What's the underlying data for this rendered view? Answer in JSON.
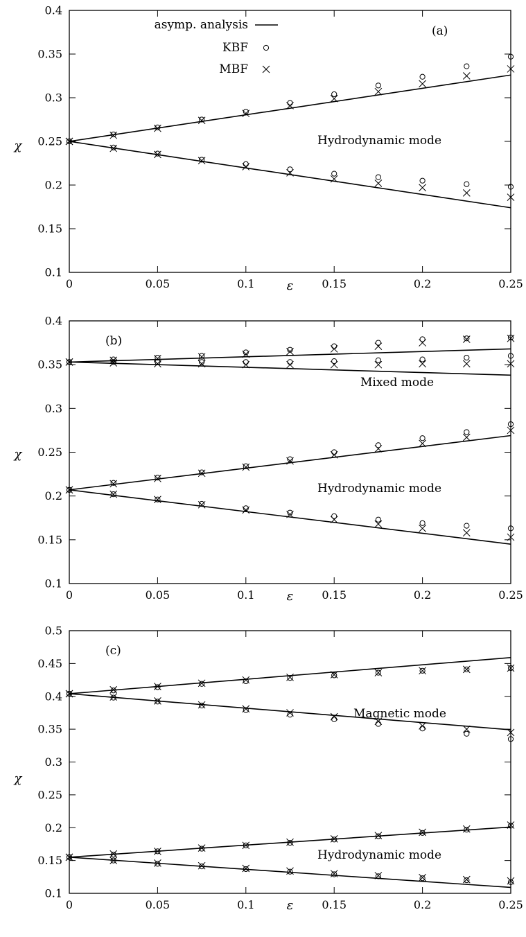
{
  "chart_data": [
    {
      "type": "line",
      "panel_label": "(a)",
      "xlabel": "ε",
      "ylabel": "χ",
      "xlim": [
        0,
        0.25
      ],
      "ylim": [
        0.1,
        0.4
      ],
      "xticks": [
        "0",
        "0.05",
        "0.1",
        "0.15",
        "0.2",
        "0.25"
      ],
      "yticks": [
        "0.1",
        "0.15",
        "0.2",
        "0.25",
        "0.3",
        "0.35",
        "0.4"
      ],
      "grid": false,
      "legend": {
        "placement": "top-left",
        "entries": [
          {
            "label": "asymp. analysis",
            "marker": "line"
          },
          {
            "label": "KBF",
            "marker": "circle"
          },
          {
            "label": "MBF",
            "marker": "cross"
          }
        ]
      },
      "annotations": [
        "Hydrodynamic mode"
      ],
      "asymptotic_lines": [
        {
          "x": [
            0,
            0.25
          ],
          "y": [
            0.25,
            0.326
          ]
        },
        {
          "x": [
            0,
            0.25
          ],
          "y": [
            0.25,
            0.174
          ]
        }
      ],
      "x": [
        0,
        0.025,
        0.05,
        0.075,
        0.1,
        0.125,
        0.15,
        0.175,
        0.2,
        0.225,
        0.25
      ],
      "series": [
        {
          "name": "KBF",
          "marker": "circle",
          "y": [
            0.25,
            0.258,
            0.266,
            0.275,
            0.284,
            0.294,
            0.304,
            0.314,
            0.324,
            0.336,
            0.347
          ]
        },
        {
          "name": "MBF",
          "marker": "cross",
          "y": [
            0.25,
            0.257,
            0.265,
            0.274,
            0.282,
            0.291,
            0.299,
            0.307,
            0.316,
            0.325,
            0.333
          ]
        },
        {
          "name": "KBF",
          "marker": "circle",
          "y": [
            0.25,
            0.243,
            0.236,
            0.229,
            0.224,
            0.218,
            0.213,
            0.209,
            0.205,
            0.201,
            0.198
          ]
        },
        {
          "name": "MBF",
          "marker": "cross",
          "y": [
            0.25,
            0.242,
            0.235,
            0.228,
            0.221,
            0.214,
            0.207,
            0.202,
            0.197,
            0.191,
            0.186
          ]
        }
      ]
    },
    {
      "type": "line",
      "panel_label": "(b)",
      "xlabel": "ε",
      "ylabel": "χ",
      "xlim": [
        0,
        0.25
      ],
      "ylim": [
        0.1,
        0.4
      ],
      "xticks": [
        "0",
        "0.05",
        "0.1",
        "0.15",
        "0.2",
        "0.25"
      ],
      "yticks": [
        "0.1",
        "0.15",
        "0.2",
        "0.25",
        "0.3",
        "0.35",
        "0.4"
      ],
      "grid": false,
      "annotations": [
        "Mixed mode",
        "Hydrodynamic mode"
      ],
      "asymptotic_lines": [
        {
          "x": [
            0,
            0.25
          ],
          "y": [
            0.353,
            0.368
          ]
        },
        {
          "x": [
            0,
            0.25
          ],
          "y": [
            0.353,
            0.338
          ]
        },
        {
          "x": [
            0,
            0.25
          ],
          "y": [
            0.207,
            0.269
          ]
        },
        {
          "x": [
            0,
            0.25
          ],
          "y": [
            0.207,
            0.145
          ]
        }
      ],
      "x": [
        0,
        0.025,
        0.05,
        0.075,
        0.1,
        0.125,
        0.15,
        0.175,
        0.2,
        0.225,
        0.25
      ],
      "series": [
        {
          "name": "KBF",
          "marker": "circle",
          "y": [
            0.353,
            0.356,
            0.358,
            0.36,
            0.364,
            0.367,
            0.371,
            0.375,
            0.379,
            0.38,
            0.381
          ]
        },
        {
          "name": "MBF",
          "marker": "cross",
          "y": [
            0.353,
            0.355,
            0.357,
            0.359,
            0.362,
            0.365,
            0.368,
            0.371,
            0.375,
            0.379,
            0.38
          ]
        },
        {
          "name": "KBF",
          "marker": "circle",
          "y": [
            0.353,
            0.353,
            0.353,
            0.353,
            0.353,
            0.353,
            0.354,
            0.355,
            0.356,
            0.358,
            0.36
          ]
        },
        {
          "name": "MBF",
          "marker": "cross",
          "y": [
            0.353,
            0.352,
            0.351,
            0.351,
            0.35,
            0.35,
            0.35,
            0.35,
            0.351,
            0.351,
            0.351
          ]
        },
        {
          "name": "KBF",
          "marker": "circle",
          "y": [
            0.207,
            0.215,
            0.221,
            0.227,
            0.234,
            0.242,
            0.25,
            0.258,
            0.266,
            0.273,
            0.282
          ]
        },
        {
          "name": "MBF",
          "marker": "cross",
          "y": [
            0.207,
            0.214,
            0.22,
            0.226,
            0.233,
            0.24,
            0.247,
            0.254,
            0.26,
            0.267,
            0.275
          ]
        },
        {
          "name": "KBF",
          "marker": "circle",
          "y": [
            0.207,
            0.202,
            0.196,
            0.191,
            0.186,
            0.181,
            0.177,
            0.173,
            0.169,
            0.166,
            0.163
          ]
        },
        {
          "name": "MBF",
          "marker": "cross",
          "y": [
            0.207,
            0.202,
            0.196,
            0.19,
            0.184,
            0.179,
            0.173,
            0.168,
            0.163,
            0.158,
            0.153
          ]
        }
      ]
    },
    {
      "type": "line",
      "panel_label": "(c)",
      "xlabel": "ε",
      "ylabel": "χ",
      "xlim": [
        0,
        0.25
      ],
      "ylim": [
        0.1,
        0.5
      ],
      "xticks": [
        "0",
        "0.05",
        "0.1",
        "0.15",
        "0.2",
        "0.25"
      ],
      "yticks": [
        "0.1",
        "0.15",
        "0.2",
        "0.25",
        "0.3",
        "0.35",
        "0.4",
        "0.45",
        "0.5"
      ],
      "grid": false,
      "annotations": [
        "Magnetic mode",
        "Hydrodynamic mode"
      ],
      "asymptotic_lines": [
        {
          "x": [
            0,
            0.25
          ],
          "y": [
            0.404,
            0.459
          ]
        },
        {
          "x": [
            0,
            0.25
          ],
          "y": [
            0.404,
            0.349
          ]
        },
        {
          "x": [
            0,
            0.25
          ],
          "y": [
            0.155,
            0.201
          ]
        },
        {
          "x": [
            0,
            0.25
          ],
          "y": [
            0.155,
            0.109
          ]
        }
      ],
      "x": [
        0,
        0.025,
        0.05,
        0.075,
        0.1,
        0.125,
        0.15,
        0.175,
        0.2,
        0.225,
        0.25
      ],
      "series": [
        {
          "name": "KBF",
          "marker": "circle",
          "y": [
            0.404,
            0.409,
            0.414,
            0.419,
            0.423,
            0.428,
            0.432,
            0.436,
            0.439,
            0.441,
            0.443
          ]
        },
        {
          "name": "MBF",
          "marker": "cross",
          "y": [
            0.404,
            0.41,
            0.415,
            0.42,
            0.425,
            0.429,
            0.433,
            0.436,
            0.439,
            0.441,
            0.443
          ]
        },
        {
          "name": "KBF",
          "marker": "circle",
          "y": [
            0.404,
            0.398,
            0.392,
            0.386,
            0.379,
            0.372,
            0.365,
            0.358,
            0.351,
            0.343,
            0.335
          ]
        },
        {
          "name": "MBF",
          "marker": "cross",
          "y": [
            0.404,
            0.399,
            0.393,
            0.387,
            0.381,
            0.375,
            0.369,
            0.362,
            0.355,
            0.35,
            0.345
          ]
        },
        {
          "name": "KBF",
          "marker": "circle",
          "y": [
            0.155,
            0.159,
            0.164,
            0.168,
            0.173,
            0.177,
            0.182,
            0.187,
            0.192,
            0.197,
            0.203
          ]
        },
        {
          "name": "MBF",
          "marker": "cross",
          "y": [
            0.155,
            0.16,
            0.164,
            0.169,
            0.173,
            0.178,
            0.183,
            0.188,
            0.193,
            0.198,
            0.204
          ]
        },
        {
          "name": "KBF",
          "marker": "circle",
          "y": [
            0.155,
            0.15,
            0.145,
            0.141,
            0.137,
            0.133,
            0.129,
            0.126,
            0.123,
            0.12,
            0.117
          ]
        },
        {
          "name": "MBF",
          "marker": "cross",
          "y": [
            0.155,
            0.15,
            0.146,
            0.142,
            0.138,
            0.134,
            0.13,
            0.127,
            0.124,
            0.121,
            0.119
          ]
        }
      ]
    }
  ]
}
